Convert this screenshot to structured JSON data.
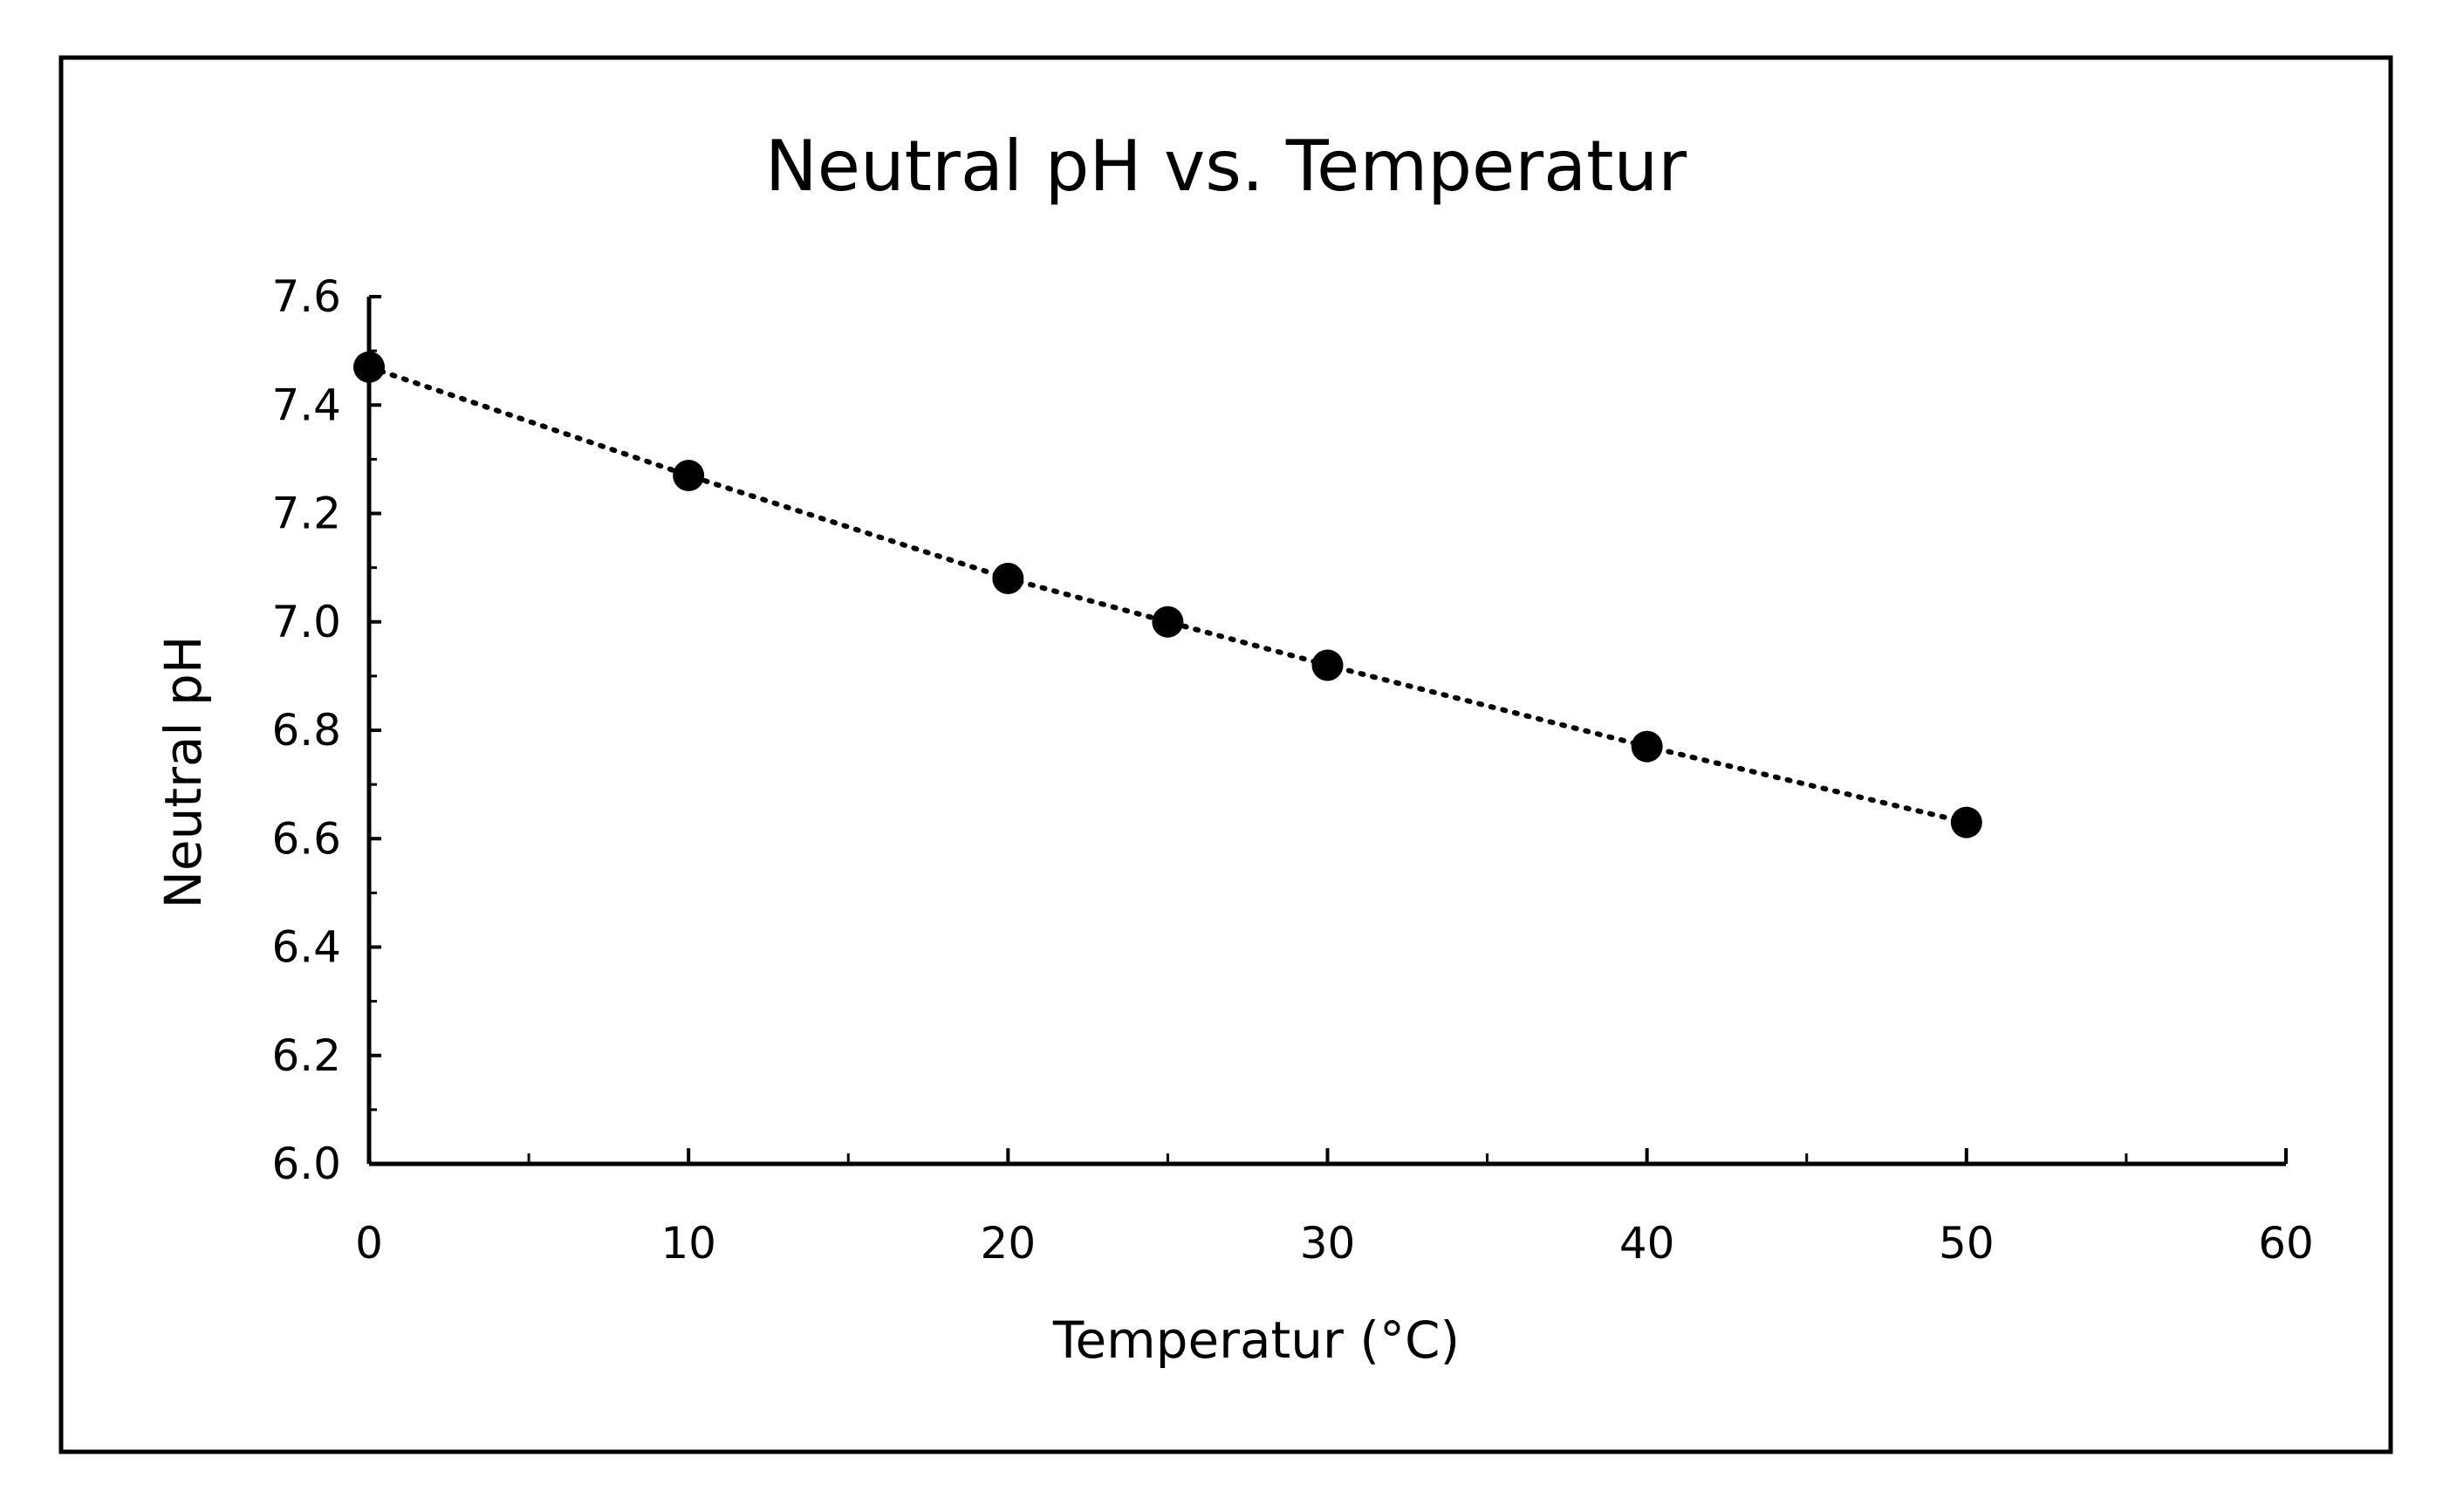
{
  "chart_data": {
    "type": "scatter",
    "title": "Neutral pH vs. Temperatur",
    "xlabel": "Temperatur  (°C)",
    "ylabel": "Neutral pH",
    "xlim": [
      0,
      60
    ],
    "ylim": [
      6.0,
      7.6
    ],
    "xticks": [
      0,
      10,
      20,
      30,
      40,
      50,
      60
    ],
    "xtick_labels": [
      "0",
      "10",
      "20",
      "30",
      "40",
      "50",
      "60"
    ],
    "yticks": [
      6.0,
      6.2,
      6.4,
      6.6,
      6.8,
      7.0,
      7.2,
      7.4,
      7.6
    ],
    "ytick_labels": [
      "6.0",
      "6.2",
      "6.4",
      "6.6",
      "6.8",
      "7.0",
      "7.2",
      "7.4",
      "7.6"
    ],
    "grid": false,
    "trendline": "dotted",
    "series": [
      {
        "name": "Neutral pH",
        "x": [
          0,
          10,
          20,
          25,
          30,
          40,
          50
        ],
        "y": [
          7.47,
          7.27,
          7.08,
          7.0,
          6.92,
          6.77,
          6.63
        ]
      }
    ],
    "colors": {
      "marker": "#000000",
      "axis": "#000000",
      "frame": "#000000",
      "background": "#ffffff"
    }
  }
}
